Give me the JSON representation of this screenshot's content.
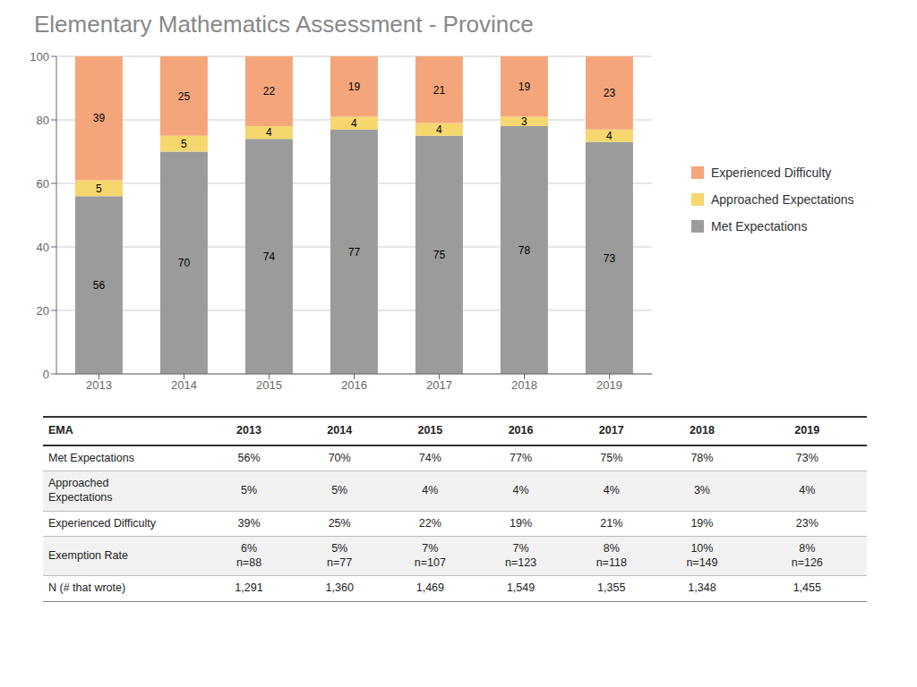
{
  "chart_data": {
    "type": "bar",
    "title": "Elementary Mathematics Assessment - Province",
    "categories": [
      "2013",
      "2014",
      "2015",
      "2016",
      "2017",
      "2018",
      "2019"
    ],
    "series": [
      {
        "name": "Met Expectations",
        "color": "#9b9b9b",
        "values": [
          56,
          70,
          74,
          77,
          75,
          78,
          73
        ]
      },
      {
        "name": "Approached Expectations",
        "color": "#f5d76e",
        "values": [
          5,
          5,
          4,
          4,
          4,
          3,
          4
        ]
      },
      {
        "name": "Experienced Difficulty",
        "color": "#f4a67a",
        "values": [
          39,
          25,
          22,
          19,
          21,
          19,
          23
        ]
      }
    ],
    "stacked": true,
    "data_labels": true,
    "grid": true,
    "legend": "right",
    "ylim": [
      0,
      100
    ],
    "yticks": [
      0,
      20,
      40,
      60,
      80,
      100
    ],
    "table": {
      "header": [
        "EMA",
        "2013",
        "2014",
        "2015",
        "2016",
        "2017",
        "2018",
        "2019"
      ],
      "rows": [
        [
          "Met Expectations",
          "56%",
          "70%",
          "74%",
          "77%",
          "75%",
          "78%",
          "73%"
        ],
        [
          "Approached\nExpectations",
          "5%",
          "5%",
          "4%",
          "4%",
          "4%",
          "3%",
          "4%"
        ],
        [
          "Experienced Difficulty",
          "39%",
          "25%",
          "22%",
          "19%",
          "21%",
          "19%",
          "23%"
        ],
        [
          "Exemption Rate",
          "6%\nn=88",
          "5%\nn=77",
          "7%\nn=107",
          "7%\nn=123",
          "8%\nn=118",
          "10%\nn=149",
          "8%\nn=126"
        ],
        [
          "N (# that wrote)",
          "1,291",
          "1,360",
          "1,469",
          "1,549",
          "1,355",
          "1,348",
          "1,455"
        ]
      ]
    }
  }
}
